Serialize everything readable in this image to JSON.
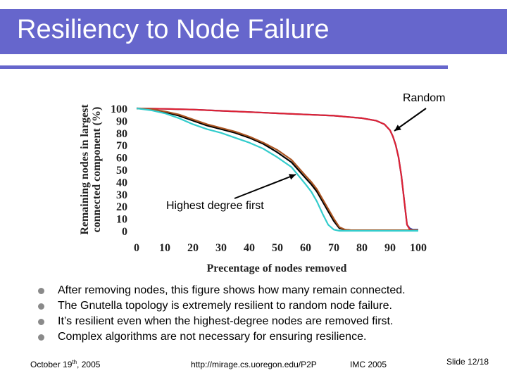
{
  "slide": {
    "title": "Resiliency to Node Failure",
    "accent_color": "#6666cc",
    "bullet_icon": "circle-bullet-icon",
    "bullets": [
      "After removing nodes, this figure shows how many remain connected.",
      "The Gnutella topology is extremely resilient to random node failure.",
      "It’s resilient even when the highest-degree nodes are removed first.",
      "Complex algorithms are not necessary for ensuring resilience."
    ],
    "footer": {
      "date_main": "October 19",
      "date_sup": "th",
      "date_year": ", 2005",
      "url": "http://mirage.cs.uoregon.edu/P2P",
      "venue": "IMC 2005",
      "slide_number": "Slide 12/18"
    }
  },
  "chart_data": {
    "type": "line",
    "xlabel": "Precentage of nodes removed",
    "ylabel_line1": "Remaining nodes in largest",
    "ylabel_line2": "connected component (%)",
    "xlim": [
      0,
      100
    ],
    "ylim": [
      0,
      100
    ],
    "x_ticks": [
      "0",
      "10",
      "20",
      "30",
      "40",
      "50",
      "60",
      "70",
      "80",
      "90",
      "100"
    ],
    "y_ticks": [
      "100",
      "90",
      "80",
      "70",
      "60",
      "50",
      "40",
      "30",
      "20",
      "10",
      "0"
    ],
    "annotations": {
      "random": "Random",
      "highest_degree": "Highest degree first"
    },
    "series": [
      {
        "color": "#3344aa",
        "x": [
          0,
          10,
          20,
          30,
          40,
          50,
          60,
          70,
          75,
          80,
          85,
          88,
          90,
          91,
          92,
          93,
          94,
          95,
          96,
          97,
          98,
          100
        ],
        "y": [
          100,
          99.6,
          99,
          98,
          97,
          96,
          95,
          94,
          93,
          92,
          90,
          87,
          82,
          77,
          70,
          60,
          45,
          25,
          5,
          2,
          1,
          1
        ]
      },
      {
        "color": "#dd2233",
        "x": [
          0,
          10,
          20,
          30,
          40,
          50,
          60,
          70,
          75,
          80,
          85,
          88,
          90,
          91,
          92,
          93,
          94,
          95,
          96,
          97,
          98,
          100
        ],
        "y": [
          100,
          99.6,
          99,
          98,
          97,
          96,
          95,
          94,
          93,
          92,
          90,
          87,
          82,
          77,
          70,
          60,
          45,
          25,
          5,
          1,
          0.5,
          0.5
        ]
      },
      {
        "color": "#000000",
        "x": [
          0,
          5,
          10,
          15,
          20,
          25,
          30,
          35,
          40,
          45,
          50,
          55,
          60,
          62,
          64,
          66,
          68,
          70,
          72,
          74,
          76,
          80,
          90,
          100
        ],
        "y": [
          100,
          99,
          97,
          94,
          90,
          86,
          83,
          80,
          76,
          71,
          64,
          56,
          43,
          38,
          32,
          24,
          16,
          8,
          2,
          1,
          0.5,
          0.5,
          0.5,
          0.5
        ]
      },
      {
        "color": "#aa5522",
        "x": [
          0,
          5,
          10,
          15,
          20,
          25,
          30,
          35,
          40,
          45,
          50,
          55,
          60,
          62,
          64,
          66,
          68,
          70,
          72,
          74,
          76,
          80,
          90,
          100
        ],
        "y": [
          100,
          99.5,
          97.5,
          95,
          91,
          87,
          84,
          81,
          77,
          72,
          66,
          58,
          45,
          40,
          34,
          26,
          18,
          10,
          3,
          1,
          0.5,
          0.5,
          0.5,
          0.5
        ]
      },
      {
        "color": "#33cccc",
        "x": [
          0,
          5,
          10,
          15,
          20,
          25,
          30,
          35,
          40,
          45,
          50,
          55,
          60,
          62,
          64,
          66,
          68,
          70,
          72,
          74,
          80,
          90,
          100
        ],
        "y": [
          100,
          98.5,
          96,
          92,
          87,
          83,
          80,
          76,
          72,
          67,
          60,
          52,
          38,
          32,
          24,
          14,
          5,
          1,
          0,
          0,
          0,
          0,
          0
        ]
      }
    ]
  }
}
